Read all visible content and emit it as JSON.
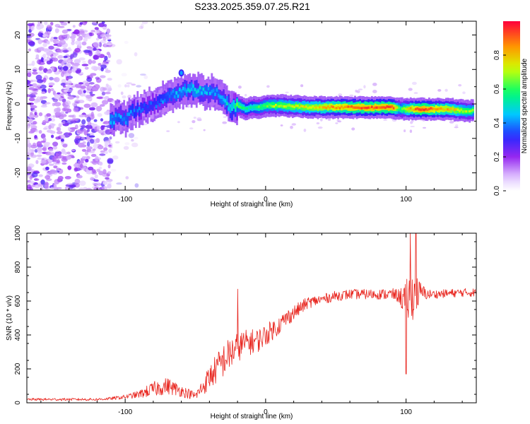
{
  "title": "S233.2025.359.07.25.R21",
  "chart_data": [
    {
      "type": "heatmap",
      "title": "S233.2025.359.07.25.R21",
      "xlabel": "Height of straight line (km)",
      "ylabel": "Frequency (Hz)",
      "xlim": [
        -170,
        150
      ],
      "ylim": [
        -25,
        24
      ],
      "xticks": [
        -100,
        0,
        100
      ],
      "xtick_labels": [
        "-100",
        "0",
        "100"
      ],
      "yticks": [
        -20,
        -10,
        0,
        10,
        20
      ],
      "ytick_labels": [
        "-20",
        "-10",
        "0",
        "10",
        "20"
      ],
      "colorbar": {
        "label": "Normalized spectral amplitude",
        "range": [
          0,
          1
        ],
        "ticks": [
          0.0,
          0.2,
          0.4,
          0.6,
          0.8
        ],
        "tick_labels": [
          "0.0",
          "0.2",
          "0.4",
          "0.6",
          "0.8"
        ],
        "colormap": "rainbow (white → purple → blue → cyan → green → yellow → red)"
      },
      "noise_region_x": [
        -170,
        -110
      ],
      "signal_track": [
        {
          "x": -111,
          "y": -5,
          "amp": 0.45
        },
        {
          "x": -105,
          "y": -3.5,
          "amp": 0.4
        },
        {
          "x": -100,
          "y": -4.5,
          "amp": 0.42
        },
        {
          "x": -95,
          "y": -2,
          "amp": 0.38
        },
        {
          "x": -90,
          "y": -1.5,
          "amp": 0.36
        },
        {
          "x": -85,
          "y": -0.5,
          "amp": 0.35
        },
        {
          "x": -80,
          "y": 0,
          "amp": 0.35
        },
        {
          "x": -75,
          "y": 1,
          "amp": 0.38
        },
        {
          "x": -70,
          "y": 2,
          "amp": 0.4
        },
        {
          "x": -65,
          "y": 3,
          "amp": 0.42
        },
        {
          "x": -60,
          "y": 3.5,
          "amp": 0.44
        },
        {
          "x": -55,
          "y": 4.5,
          "amp": 0.46
        },
        {
          "x": -50,
          "y": 4,
          "amp": 0.46
        },
        {
          "x": -45,
          "y": 3.5,
          "amp": 0.44
        },
        {
          "x": -40,
          "y": 3.5,
          "amp": 0.42
        },
        {
          "x": -35,
          "y": 3,
          "amp": 0.42
        },
        {
          "x": -30,
          "y": 1,
          "amp": 0.45
        },
        {
          "x": -25,
          "y": -1.5,
          "amp": 0.5
        },
        {
          "x": -20,
          "y": -0.5,
          "amp": 0.62
        },
        {
          "x": -15,
          "y": -1.5,
          "amp": 0.55
        },
        {
          "x": -10,
          "y": -1,
          "amp": 0.55
        },
        {
          "x": -5,
          "y": -1,
          "amp": 0.6
        },
        {
          "x": 0,
          "y": -0.5,
          "amp": 0.65
        },
        {
          "x": 10,
          "y": -0.5,
          "amp": 0.7
        },
        {
          "x": 20,
          "y": -0.7,
          "amp": 0.72
        },
        {
          "x": 30,
          "y": -1,
          "amp": 0.75
        },
        {
          "x": 40,
          "y": -1,
          "amp": 0.8
        },
        {
          "x": 50,
          "y": -1,
          "amp": 0.85
        },
        {
          "x": 60,
          "y": -1,
          "amp": 0.88
        },
        {
          "x": 70,
          "y": -1,
          "amp": 0.9
        },
        {
          "x": 80,
          "y": -1,
          "amp": 0.9
        },
        {
          "x": 90,
          "y": -1,
          "amp": 0.92
        },
        {
          "x": 95,
          "y": -1.5,
          "amp": 0.6
        },
        {
          "x": 100,
          "y": -1.5,
          "amp": 0.75
        },
        {
          "x": 110,
          "y": -1.5,
          "amp": 0.95
        },
        {
          "x": 120,
          "y": -1.5,
          "amp": 0.85
        },
        {
          "x": 130,
          "y": -1.5,
          "amp": 0.8
        },
        {
          "x": 140,
          "y": -2,
          "amp": 0.7
        },
        {
          "x": 148,
          "y": -2,
          "amp": 0.65
        }
      ]
    },
    {
      "type": "line",
      "xlabel": "Height of straight line (km)",
      "ylabel": "SNR (10 * v/v)",
      "xlim": [
        -170,
        150
      ],
      "ylim": [
        0,
        1000
      ],
      "xticks": [
        -100,
        0,
        100
      ],
      "xtick_labels": [
        "-100",
        "0",
        "100"
      ],
      "yticks": [
        0,
        200,
        400,
        600,
        800,
        1000
      ],
      "ytick_labels": [
        "0",
        "200",
        "400",
        "600",
        "800",
        "1000"
      ],
      "line_color": "#e8251e",
      "envelope": {
        "x": [
          -170,
          -120,
          -110,
          -100,
          -90,
          -80,
          -70,
          -60,
          -50,
          -45,
          -40,
          -35,
          -30,
          -25,
          -20,
          -15,
          -10,
          -5,
          0,
          5,
          10,
          15,
          20,
          25,
          30,
          40,
          50,
          60,
          70,
          80,
          90,
          95,
          100,
          105,
          110,
          115,
          120,
          130,
          140,
          150
        ],
        "mean": [
          20,
          20,
          25,
          35,
          50,
          80,
          100,
          70,
          40,
          90,
          150,
          200,
          250,
          290,
          330,
          350,
          360,
          370,
          400,
          430,
          460,
          500,
          530,
          560,
          590,
          610,
          630,
          640,
          640,
          640,
          640,
          630,
          600,
          640,
          650,
          640,
          640,
          645,
          650,
          650
        ],
        "spread": [
          15,
          15,
          18,
          25,
          45,
          90,
          100,
          70,
          50,
          100,
          150,
          180,
          200,
          200,
          180,
          160,
          150,
          140,
          130,
          120,
          110,
          100,
          90,
          80,
          70,
          60,
          60,
          60,
          60,
          60,
          70,
          80,
          250,
          300,
          130,
          60,
          50,
          50,
          50,
          50
        ]
      },
      "notable_points": [
        {
          "x": -20,
          "y": 670
        },
        {
          "x": 100,
          "y": 170
        },
        {
          "x": 103,
          "y": 1000
        },
        {
          "x": 107,
          "y": 1000
        }
      ]
    }
  ]
}
